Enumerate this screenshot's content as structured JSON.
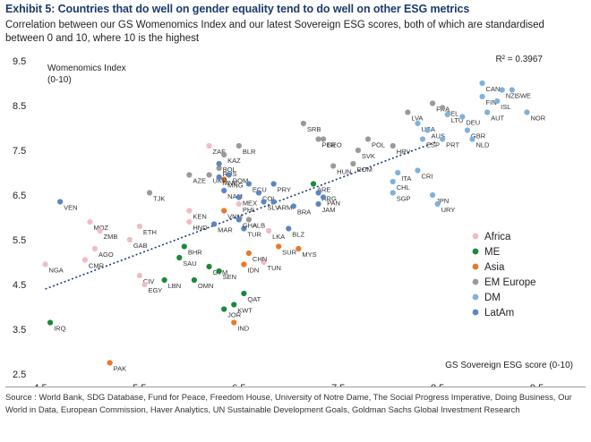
{
  "header": {
    "title": "Exhibit 5: Countries that do well on gender equality tend to do well on other ESG metrics",
    "subtitle": "Correlation between our GS Womenomics Index and our latest Sovereign ESG scores, both of which are standardised between 0 and 10, where 10 is the highest"
  },
  "source": "Source : World Bank, SDG Database, Fund for Peace, Freedom House, University of Notre Dame, The Social Progress Imperative, Doing Business, Our World in Data, European Commission, Haver Analytics, UN Sustainable Development Goals, Goldman Sachs Global Investment Research",
  "colors": {
    "Africa": "#f0bcc4",
    "ME": "#1a8a3a",
    "Asia": "#e8782a",
    "EM Europe": "#9a9a9a",
    "DM": "#7fb2dc",
    "LatAm": "#5b86c2",
    "trend": "#1f3d78"
  },
  "chart_data": {
    "type": "scatter",
    "xlabel": "GS Sovereign ESG score (0-10)",
    "ylabel": "Womenomics Index",
    "ylabel_unit": "(0-10)",
    "xlim": [
      4.5,
      10
    ],
    "ylim": [
      2.5,
      9.5
    ],
    "xticks": [
      "4.5",
      "5.5",
      "6.5",
      "7.5",
      "8.5",
      "9.5"
    ],
    "yticks": [
      "2.5",
      "3.5",
      "4.5",
      "5.5",
      "6.5",
      "7.5",
      "8.5",
      "9.5"
    ],
    "annotation": "R² = 0.3967",
    "trendline": {
      "x": [
        4.55,
        8.5
      ],
      "y": [
        4.4,
        7.7
      ]
    },
    "legend_position": "right",
    "grid": false,
    "series": [
      {
        "name": "Africa",
        "points": [
          {
            "label": "ZAF",
            "x": 6.2,
            "y": 7.6
          },
          {
            "label": "MOZ",
            "x": 5.0,
            "y": 5.9
          },
          {
            "label": "ZMB",
            "x": 5.1,
            "y": 5.7
          },
          {
            "label": "AGO",
            "x": 5.05,
            "y": 5.3
          },
          {
            "label": "GAB",
            "x": 5.4,
            "y": 5.5
          },
          {
            "label": "CMR",
            "x": 4.95,
            "y": 5.05
          },
          {
            "label": "NGA",
            "x": 4.55,
            "y": 4.95
          },
          {
            "label": "KEN",
            "x": 6.0,
            "y": 6.15
          },
          {
            "label": "HND",
            "x": 6.0,
            "y": 5.9
          },
          {
            "label": "ETH",
            "x": 5.5,
            "y": 5.8
          },
          {
            "label": "CIV",
            "x": 5.5,
            "y": 4.7
          },
          {
            "label": "EGY",
            "x": 5.55,
            "y": 4.5
          },
          {
            "label": "LKA",
            "x": 6.8,
            "y": 5.7
          },
          {
            "label": "TUN",
            "x": 6.75,
            "y": 5.0
          },
          {
            "label": "PHL",
            "x": 6.5,
            "y": 6.3
          }
        ]
      },
      {
        "name": "ME",
        "points": [
          {
            "label": "IRQ",
            "x": 4.6,
            "y": 3.65
          },
          {
            "label": "BHR",
            "x": 5.95,
            "y": 5.35
          },
          {
            "label": "SAU",
            "x": 5.9,
            "y": 5.1
          },
          {
            "label": "LBN",
            "x": 5.75,
            "y": 4.6
          },
          {
            "label": "OMN",
            "x": 6.05,
            "y": 4.6
          },
          {
            "label": "GTM",
            "x": 6.2,
            "y": 4.9
          },
          {
            "label": "SEN",
            "x": 6.3,
            "y": 4.8
          },
          {
            "label": "QAT",
            "x": 6.55,
            "y": 4.3
          },
          {
            "label": "JOR",
            "x": 6.35,
            "y": 3.95
          },
          {
            "label": "KWT",
            "x": 6.45,
            "y": 4.05
          },
          {
            "label": "ARE",
            "x": 7.25,
            "y": 6.75
          }
        ]
      },
      {
        "name": "Asia",
        "points": [
          {
            "label": "PAK",
            "x": 5.2,
            "y": 2.75
          },
          {
            "label": "IND",
            "x": 6.45,
            "y": 3.65
          },
          {
            "label": "CHN",
            "x": 6.6,
            "y": 5.2
          },
          {
            "label": "IDN",
            "x": 6.55,
            "y": 4.95
          },
          {
            "label": "SUR",
            "x": 6.9,
            "y": 5.35
          },
          {
            "label": "MYS",
            "x": 7.1,
            "y": 5.3
          },
          {
            "label": "VNM",
            "x": 6.35,
            "y": 6.15
          },
          {
            "label": "MNG",
            "x": 6.35,
            "y": 6.85
          }
        ]
      },
      {
        "name": "EM Europe",
        "points": [
          {
            "label": "KAZ",
            "x": 6.35,
            "y": 7.4
          },
          {
            "label": "BLR",
            "x": 6.5,
            "y": 7.6
          },
          {
            "label": "AZE",
            "x": 6.0,
            "y": 6.95
          },
          {
            "label": "TJK",
            "x": 5.6,
            "y": 6.55
          },
          {
            "label": "RUS",
            "x": 6.3,
            "y": 7.1
          },
          {
            "label": "UKR",
            "x": 6.2,
            "y": 6.95
          },
          {
            "label": "SRB",
            "x": 7.15,
            "y": 8.1
          },
          {
            "label": "PER",
            "x": 7.3,
            "y": 7.75
          },
          {
            "label": "GEO",
            "x": 7.35,
            "y": 7.75
          },
          {
            "label": "HUN",
            "x": 7.45,
            "y": 7.15
          },
          {
            "label": "ROM",
            "x": 7.65,
            "y": 7.2
          },
          {
            "label": "SVK",
            "x": 7.7,
            "y": 7.5
          },
          {
            "label": "POL",
            "x": 7.8,
            "y": 7.75
          },
          {
            "label": "HRV",
            "x": 8.05,
            "y": 7.6
          },
          {
            "label": "LVA",
            "x": 8.2,
            "y": 8.35
          },
          {
            "label": "FRA",
            "x": 8.45,
            "y": 8.55
          },
          {
            "label": "BEL",
            "x": 8.55,
            "y": 8.45
          },
          {
            "label": "ALB",
            "x": 6.6,
            "y": 5.95
          }
        ]
      },
      {
        "name": "DM",
        "points": [
          {
            "label": "CAN",
            "x": 8.95,
            "y": 9.0
          },
          {
            "label": "NZL",
            "x": 9.15,
            "y": 8.85
          },
          {
            "label": "SWE",
            "x": 9.25,
            "y": 8.85
          },
          {
            "label": "FIN",
            "x": 8.95,
            "y": 8.7
          },
          {
            "label": "ISL",
            "x": 9.1,
            "y": 8.6
          },
          {
            "label": "AUT",
            "x": 9.0,
            "y": 8.35
          },
          {
            "label": "NOR",
            "x": 9.4,
            "y": 8.35
          },
          {
            "label": "LTU",
            "x": 8.6,
            "y": 8.3
          },
          {
            "label": "DEU",
            "x": 8.75,
            "y": 8.25
          },
          {
            "label": "USA",
            "x": 8.3,
            "y": 8.1
          },
          {
            "label": "AUS",
            "x": 8.4,
            "y": 7.95
          },
          {
            "label": "GBR",
            "x": 8.8,
            "y": 7.95
          },
          {
            "label": "ESP",
            "x": 8.35,
            "y": 7.75
          },
          {
            "label": "NLD",
            "x": 8.85,
            "y": 7.75
          },
          {
            "label": "PRT",
            "x": 8.55,
            "y": 7.75
          },
          {
            "label": "CRI",
            "x": 8.3,
            "y": 7.05
          },
          {
            "label": "ITA",
            "x": 8.1,
            "y": 7.0
          },
          {
            "label": "CHL",
            "x": 8.05,
            "y": 6.8
          },
          {
            "label": "SGP",
            "x": 8.05,
            "y": 6.55
          },
          {
            "label": "JPN",
            "x": 8.45,
            "y": 6.5
          },
          {
            "label": "URY",
            "x": 8.5,
            "y": 6.3
          }
        ]
      },
      {
        "name": "LatAm",
        "points": [
          {
            "label": "VEN",
            "x": 4.7,
            "y": 6.35
          },
          {
            "label": "BOL",
            "x": 6.3,
            "y": 7.2
          },
          {
            "label": "DOM",
            "x": 6.4,
            "y": 6.95
          },
          {
            "label": "NAM",
            "x": 6.35,
            "y": 6.6
          },
          {
            "label": "ECU",
            "x": 6.6,
            "y": 6.75
          },
          {
            "label": "PRY",
            "x": 6.85,
            "y": 6.75
          },
          {
            "label": "COL",
            "x": 6.7,
            "y": 6.55
          },
          {
            "label": "MEX",
            "x": 6.5,
            "y": 6.45
          },
          {
            "label": "SLV",
            "x": 6.75,
            "y": 6.35
          },
          {
            "label": "ARM",
            "x": 6.85,
            "y": 6.35
          },
          {
            "label": "BRA",
            "x": 7.05,
            "y": 6.25
          },
          {
            "label": "ARG",
            "x": 7.3,
            "y": 6.55
          },
          {
            "label": "PAN",
            "x": 7.35,
            "y": 6.45
          },
          {
            "label": "JAM",
            "x": 7.3,
            "y": 6.3
          },
          {
            "label": "MAR",
            "x": 6.25,
            "y": 5.85
          },
          {
            "label": "TUR",
            "x": 6.55,
            "y": 5.75
          },
          {
            "label": "GHA",
            "x": 6.5,
            "y": 5.95
          },
          {
            "label": "BLZ",
            "x": 7.0,
            "y": 5.75
          },
          {
            "label": "MNE",
            "x": 6.3,
            "y": 6.9
          }
        ]
      }
    ],
    "point_labels": [
      {
        "text": "CAN",
        "dx": -8,
        "dy": -8
      },
      {
        "text": "NZL SWE",
        "dx": -4,
        "dy": -8
      }
    ]
  }
}
